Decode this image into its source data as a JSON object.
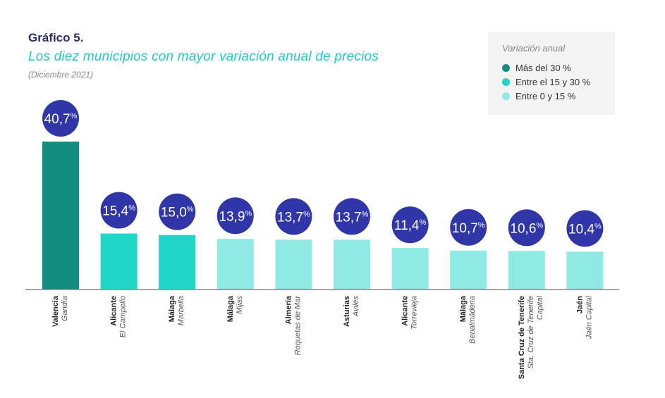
{
  "title": "Gráfico 5.",
  "subtitle": "Los diez municipios con mayor variación anual de precios",
  "note": "(Diciembre 2021)",
  "legend": {
    "title": "Variación anual",
    "items": [
      {
        "label": "Más del 30 %",
        "color": "#138c80"
      },
      {
        "label": "Entre el 15 y 30 %",
        "color": "#1fd6c8"
      },
      {
        "label": "Entre 0 y 15 %",
        "color": "#8fe9e4"
      }
    ]
  },
  "colors": {
    "bubble": "#3036a8",
    "axis": "#888888"
  },
  "chart_data": {
    "type": "bar",
    "categories": [
      {
        "province": "Valencia",
        "municipality": "Gandía"
      },
      {
        "province": "Alicante",
        "municipality": "El Campello"
      },
      {
        "province": "Málaga",
        "municipality": "Marbella"
      },
      {
        "province": "Málaga",
        "municipality": "Mijas"
      },
      {
        "province": "Almería",
        "municipality": "Roquetas de Mar"
      },
      {
        "province": "Asturias",
        "municipality": "Avilés"
      },
      {
        "province": "Alicante",
        "municipality": "Torrevieja"
      },
      {
        "province": "Málaga",
        "municipality": "Benalmádena"
      },
      {
        "province": "Santa Cruz de Tenerife",
        "municipality": "Sta. Cruz de Tenerife Capital"
      },
      {
        "province": "Jaén",
        "municipality": "Jaén Capital"
      }
    ],
    "values": [
      40.7,
      15.4,
      15.0,
      13.9,
      13.7,
      13.7,
      11.4,
      10.7,
      10.6,
      10.4
    ],
    "value_labels": [
      "40,7",
      "15,4",
      "15,0",
      "13,9",
      "13,7",
      "13,7",
      "11,4",
      "10,7",
      "10,6",
      "10,4"
    ],
    "value_suffix": "%",
    "ylim": [
      0,
      40.7
    ]
  }
}
